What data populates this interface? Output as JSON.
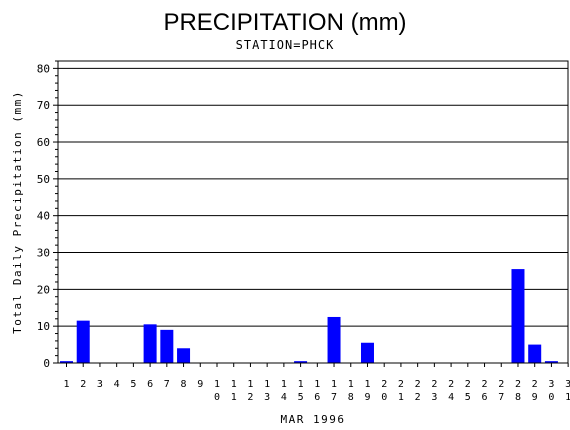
{
  "chart_data": {
    "type": "bar",
    "title": "PRECIPITATION (mm)",
    "subtitle": "STATION=PHCK",
    "xlabel": "MAR 1996",
    "ylabel": "Total Daily Precipitation (mm)",
    "ylim": [
      0,
      82
    ],
    "yticks": [
      0,
      10,
      20,
      30,
      40,
      50,
      60,
      70,
      80
    ],
    "grid": "horizontal",
    "bar_color": "#0000ff",
    "categories": [
      "1",
      "2",
      "3",
      "4",
      "5",
      "6",
      "7",
      "8",
      "9",
      "10",
      "11",
      "12",
      "13",
      "14",
      "15",
      "16",
      "17",
      "18",
      "19",
      "20",
      "21",
      "22",
      "23",
      "24",
      "25",
      "26",
      "27",
      "28",
      "29",
      "30",
      "31"
    ],
    "values": [
      0.5,
      11.5,
      0,
      0,
      0,
      10.5,
      9.0,
      4.0,
      0,
      0,
      0,
      0,
      0,
      0,
      0.5,
      0,
      12.5,
      0,
      5.5,
      0,
      0,
      0,
      0,
      0,
      0,
      0,
      0,
      25.5,
      5.0,
      0.5,
      0
    ]
  }
}
